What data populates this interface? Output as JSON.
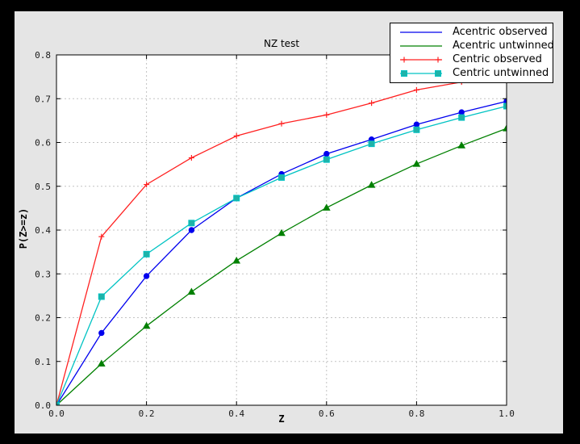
{
  "window": {
    "frame_color": "#000000",
    "figure_background": "#e5e5e5",
    "plot_background": "#ffffff",
    "grid_color": "#c3c3c3",
    "axis_color": "#000000",
    "tick_label_color": "#1a1a1a"
  },
  "chart_data": {
    "type": "line",
    "title": "NZ test",
    "xlabel": "Z",
    "ylabel": "P(Z>=z)",
    "xlim": [
      0.0,
      1.0
    ],
    "ylim": [
      0.0,
      0.8
    ],
    "xticks": [
      0.0,
      0.2,
      0.4,
      0.6,
      0.8,
      1.0
    ],
    "xtick_labels": [
      "0.0",
      "0.2",
      "0.4",
      "0.6",
      "0.8",
      "1.0"
    ],
    "yticks": [
      0.0,
      0.1,
      0.2,
      0.3,
      0.4,
      0.5,
      0.6,
      0.7,
      0.8
    ],
    "ytick_labels": [
      "0.0",
      "0.1",
      "0.2",
      "0.3",
      "0.4",
      "0.5",
      "0.6",
      "0.7",
      "0.8"
    ],
    "grid": true,
    "grid_style": "dashed",
    "legend_position": "upper-right, overlapping top-right of axes",
    "x": [
      0.0,
      0.1,
      0.2,
      0.3,
      0.4,
      0.5,
      0.6,
      0.7,
      0.8,
      0.9,
      1.0
    ],
    "series": [
      {
        "name": "Acentric observed",
        "color": "#0000ee",
        "marker": "circle",
        "marker_fill": "#0000ee",
        "legend_marker": "none",
        "values": [
          0.0,
          0.165,
          0.295,
          0.4,
          0.473,
          0.528,
          0.574,
          0.607,
          0.641,
          0.669,
          0.694
        ]
      },
      {
        "name": "Acentric untwinned",
        "color": "#008000",
        "marker": "triangle",
        "marker_fill": "#008000",
        "legend_marker": "none",
        "values": [
          0.0,
          0.095,
          0.181,
          0.259,
          0.33,
          0.393,
          0.451,
          0.503,
          0.551,
          0.593,
          0.632
        ]
      },
      {
        "name": "Centric observed",
        "color": "#ff2020",
        "marker": "plus",
        "marker_fill": "#ff2020",
        "legend_marker": "plus",
        "values": [
          0.0,
          0.385,
          0.504,
          0.565,
          0.615,
          0.643,
          0.663,
          0.69,
          0.72,
          0.738,
          0.765
        ]
      },
      {
        "name": "Centric untwinned",
        "color": "#00c3c3",
        "marker": "square",
        "marker_fill": "#1fb2a8",
        "legend_marker": "square",
        "values": [
          0.0,
          0.248,
          0.345,
          0.416,
          0.473,
          0.52,
          0.561,
          0.597,
          0.629,
          0.657,
          0.683
        ]
      }
    ]
  }
}
